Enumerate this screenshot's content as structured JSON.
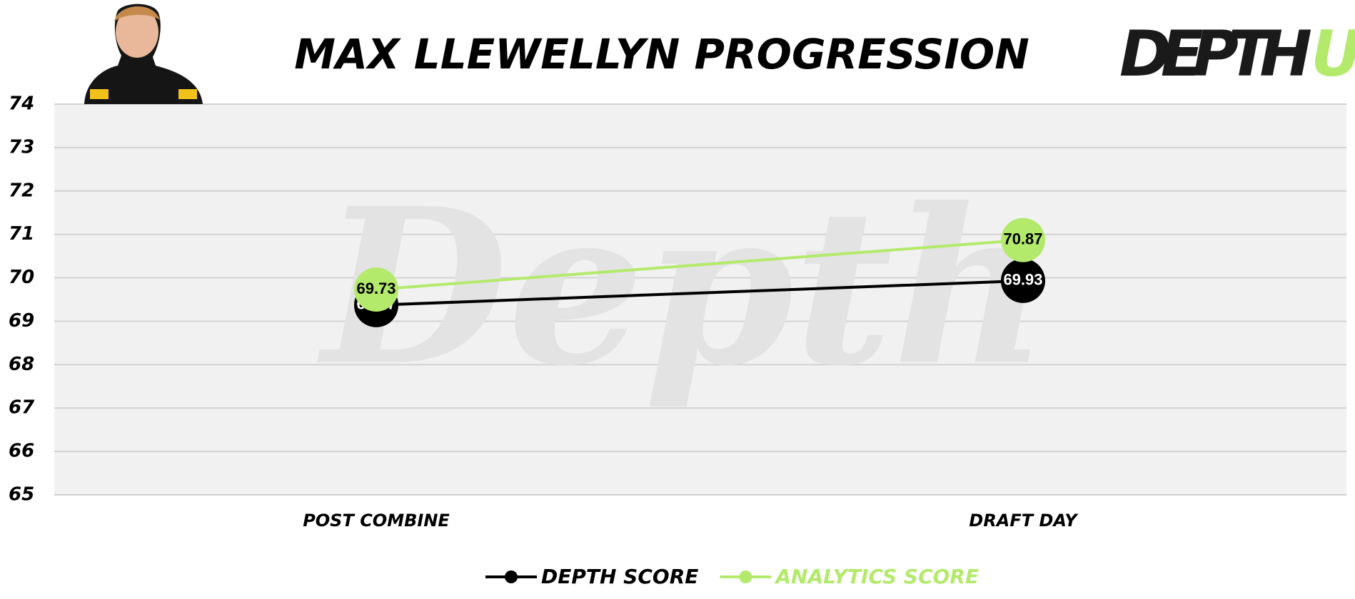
{
  "logo": {
    "main": "DEPTH",
    "accent": "U"
  },
  "watermark": "Depth",
  "chart_data": {
    "type": "line",
    "title": "MAX LLEWELLYN PROGRESSION",
    "categories": [
      "POST COMBINE",
      "DRAFT DAY"
    ],
    "series": [
      {
        "name": "DEPTH SCORE",
        "color": "#000000",
        "values": [
          69.37,
          69.93
        ]
      },
      {
        "name": "ANALYTICS SCORE",
        "color": "#b3ea6c",
        "values": [
          69.73,
          70.87
        ]
      }
    ],
    "ylim": [
      65,
      74
    ],
    "yticks": [
      65,
      66,
      67,
      68,
      69,
      70,
      71,
      72,
      73,
      74
    ],
    "grid": true
  }
}
